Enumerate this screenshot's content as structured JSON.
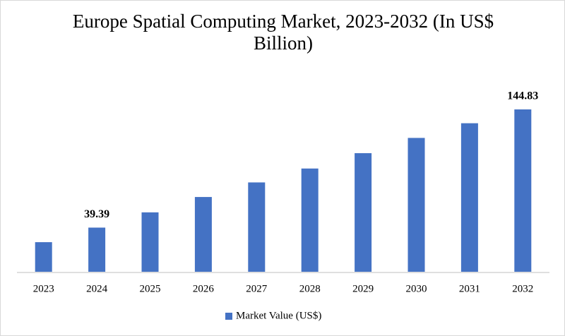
{
  "chart_data": {
    "type": "bar",
    "title": "Europe Spatial Computing Market, 2023-2032 (In US$ Billion)",
    "categories": [
      "2023",
      "2024",
      "2025",
      "2026",
      "2027",
      "2028",
      "2029",
      "2030",
      "2031",
      "2032"
    ],
    "series": [
      {
        "name": "Market Value (US$)",
        "color": "#4472c4",
        "values": [
          26.4,
          39.39,
          53.0,
          66.7,
          79.7,
          92.1,
          105.8,
          119.4,
          132.5,
          144.83
        ],
        "value_labels": [
          null,
          "39.39",
          null,
          null,
          null,
          null,
          null,
          null,
          null,
          "144.83"
        ]
      }
    ],
    "legend": "bottom"
  }
}
